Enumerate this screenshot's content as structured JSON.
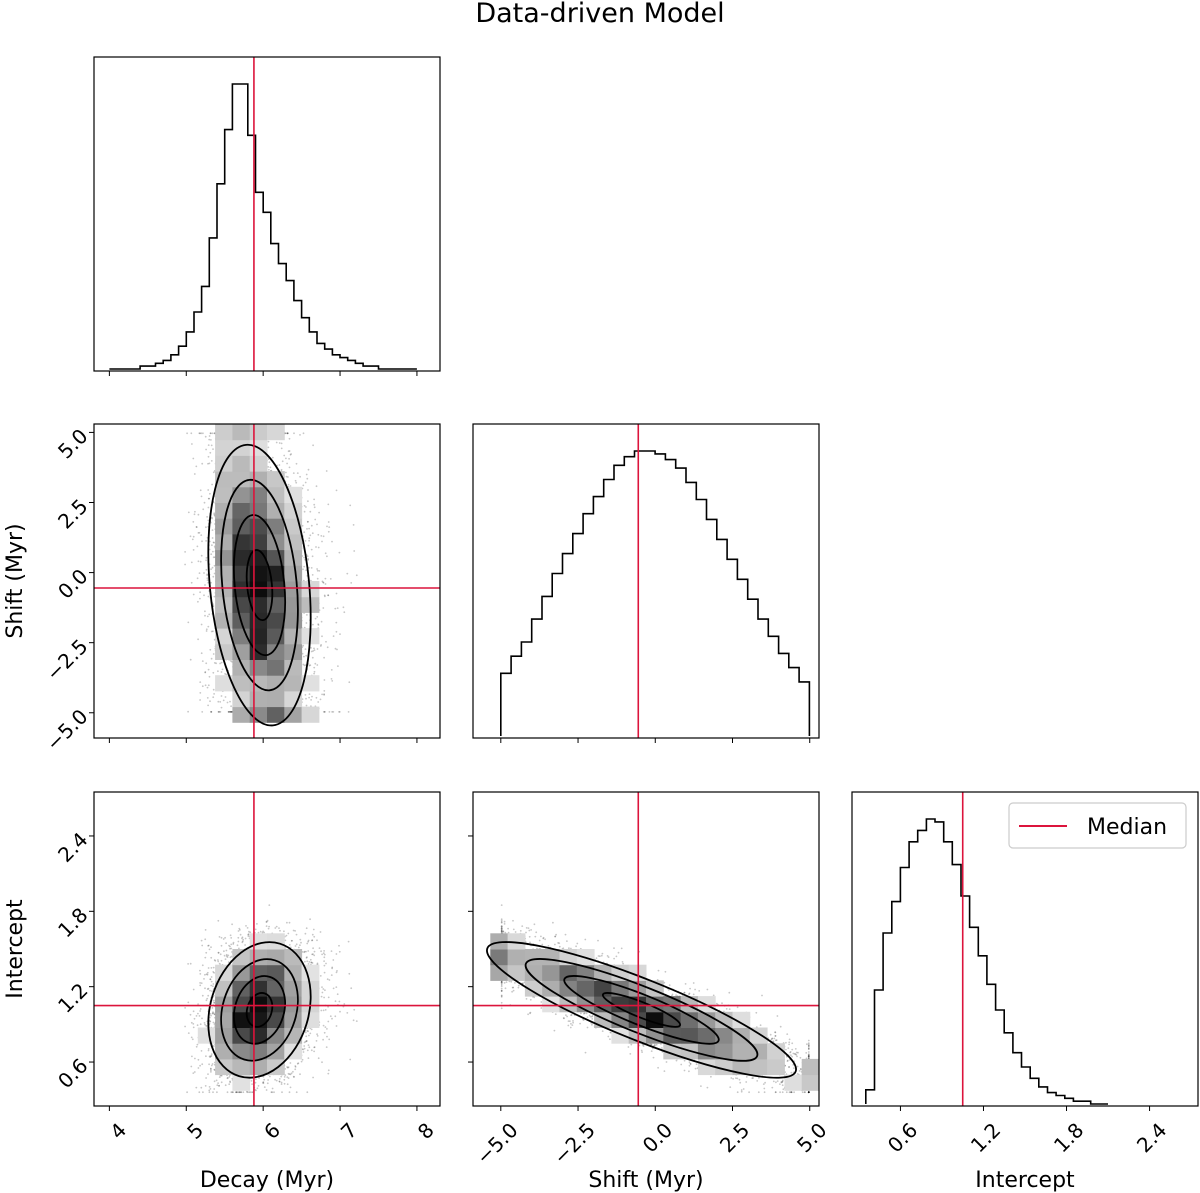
{
  "chart_data": {
    "type": "corner",
    "title": "Data-driven Model",
    "parameters": [
      {
        "name": "decay",
        "label": "Decay (Myr)",
        "range": [
          3.8,
          8.3
        ],
        "ticks": [
          4,
          5,
          6,
          7,
          8
        ],
        "tick_labels": [
          "4",
          "5",
          "6",
          "7",
          "8"
        ],
        "median": 5.88
      },
      {
        "name": "shift",
        "label": "Shift (Myr)",
        "range": [
          -5.9,
          5.3
        ],
        "ticks": [
          -5.0,
          -2.5,
          0.0,
          2.5,
          5.0
        ],
        "tick_labels": [
          "−5.0",
          "−2.5",
          "0.0",
          "2.5",
          "5.0"
        ],
        "median": -0.55
      },
      {
        "name": "intercept",
        "label": "Intercept",
        "range": [
          0.25,
          2.75
        ],
        "ticks": [
          0.6,
          1.2,
          1.8,
          2.4
        ],
        "tick_labels": [
          "0.6",
          "1.2",
          "1.8",
          "2.4"
        ],
        "median": 1.05
      }
    ],
    "histograms": [
      {
        "parameter": "decay",
        "bin_edges_start": 4.0,
        "bin_width": 0.1,
        "counts": [
          0,
          0,
          0,
          0,
          1,
          1,
          2,
          3,
          5,
          8,
          13,
          20,
          29,
          46,
          65,
          84,
          100,
          100,
          82,
          62,
          55,
          44,
          37,
          31,
          24,
          18,
          13,
          9,
          7,
          5,
          4,
          3,
          2,
          1,
          1,
          0,
          0,
          0,
          0,
          0
        ]
      },
      {
        "parameter": "shift",
        "bin_edges_start": -5.0,
        "bin_width": 0.333,
        "counts": [
          22,
          28,
          33,
          41,
          49,
          57,
          64,
          71,
          78,
          84,
          90,
          95,
          98,
          100,
          100,
          99,
          97,
          94,
          89,
          83,
          76,
          69,
          62,
          55,
          48,
          41,
          35,
          29,
          24,
          19
        ]
      },
      {
        "parameter": "intercept",
        "bin_edges_start": 0.35,
        "bin_width": 0.0625,
        "counts": [
          5,
          40,
          60,
          71,
          83,
          92,
          96,
          100,
          99,
          92,
          84,
          73,
          62,
          52,
          42,
          33,
          25,
          18,
          13,
          9,
          6,
          4,
          3,
          2,
          1,
          1,
          0,
          0
        ]
      }
    ],
    "scatter_panels": [
      {
        "x": "decay",
        "y": "shift",
        "density_peak": [
          5.8,
          -0.7
        ],
        "contour_levels": 4
      },
      {
        "x": "decay",
        "y": "intercept",
        "density_peak": [
          5.8,
          1.0
        ],
        "contour_levels": 4
      },
      {
        "x": "shift",
        "y": "intercept",
        "density_peak": [
          0.5,
          0.93
        ],
        "correlation": "negative",
        "contour_levels": 4
      }
    ],
    "median_color": "#dc143c",
    "legend": {
      "label": "Median",
      "location": "upper right"
    }
  }
}
